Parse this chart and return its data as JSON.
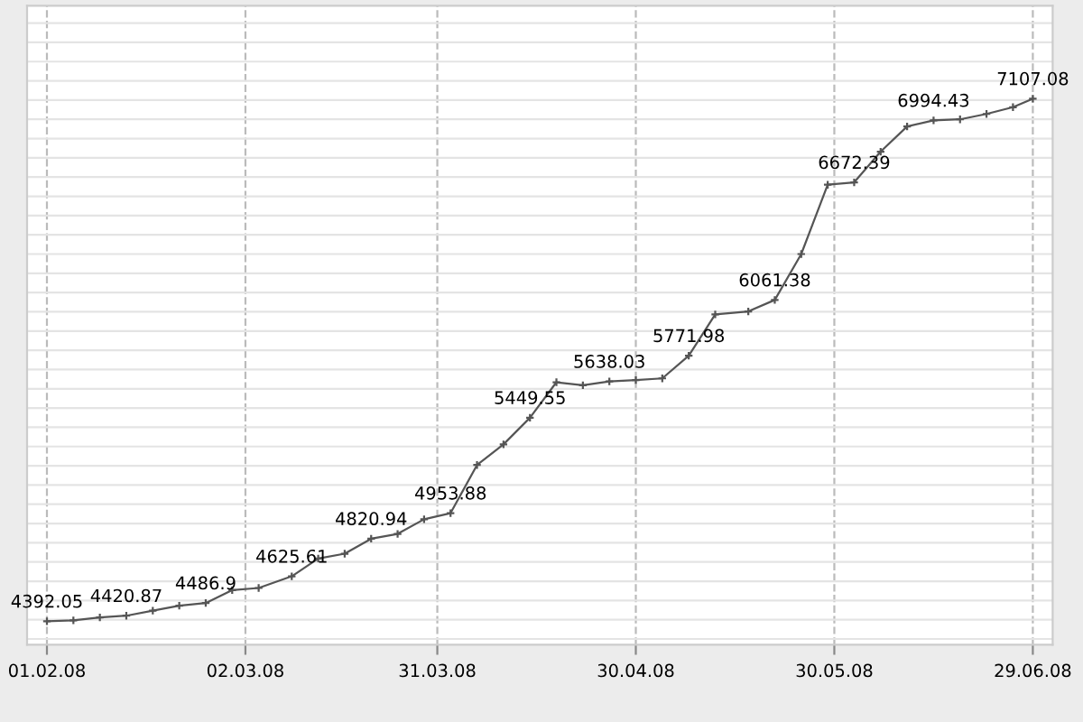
{
  "chart_data": {
    "type": "line",
    "x": [
      "2008-02-01",
      "2008-02-05",
      "2008-02-09",
      "2008-02-13",
      "2008-02-17",
      "2008-02-21",
      "2008-02-25",
      "2008-02-29",
      "2008-03-04",
      "2008-03-09",
      "2008-03-13",
      "2008-03-17",
      "2008-03-21",
      "2008-03-25",
      "2008-03-29",
      "2008-04-02",
      "2008-04-06",
      "2008-04-10",
      "2008-04-14",
      "2008-04-18",
      "2008-04-22",
      "2008-04-26",
      "2008-04-30",
      "2008-05-04",
      "2008-05-08",
      "2008-05-12",
      "2008-05-17",
      "2008-05-21",
      "2008-05-25",
      "2008-05-29",
      "2008-06-02",
      "2008-06-06",
      "2008-06-10",
      "2008-06-14",
      "2008-06-18",
      "2008-06-22",
      "2008-06-26",
      "2008-06-29"
    ],
    "series": [
      {
        "color": "#555555",
        "values": [
          4392.05,
          4397,
          4412,
          4420.87,
          4447,
          4473,
          4486.9,
          4554,
          4565,
          4625.61,
          4718,
          4743,
          4820.94,
          4846,
          4922,
          4953.88,
          5204,
          5311,
          5449.55,
          5634,
          5618,
          5638.03,
          5645,
          5654,
          5771.98,
          5986,
          6002,
          6061.38,
          6300,
          6660,
          6672.39,
          6832,
          6963,
          6994.43,
          7000,
          7028,
          7063,
          7107.08
        ],
        "value_labels": [
          "4392.05",
          null,
          null,
          "4420.87",
          null,
          null,
          "4486.9",
          null,
          null,
          "4625.61",
          null,
          null,
          "4820.94",
          null,
          null,
          "4953.88",
          null,
          null,
          "5449.55",
          null,
          null,
          "5638.03",
          null,
          null,
          "5771.98",
          null,
          null,
          "6061.38",
          null,
          null,
          "6672.39",
          null,
          null,
          "6994.43",
          null,
          null,
          null,
          "7107.08"
        ]
      }
    ],
    "xlim": [
      "2008-01-29",
      "2008-07-02"
    ],
    "xticks": [
      {
        "value": "2008-02-01",
        "label": "01.02.08"
      },
      {
        "value": "2008-03-02",
        "label": "02.03.08"
      },
      {
        "value": "2008-03-31",
        "label": "31.03.08"
      },
      {
        "value": "2008-04-30",
        "label": "30.04.08"
      },
      {
        "value": "2008-05-30",
        "label": "30.05.08"
      },
      {
        "value": "2008-06-29",
        "label": "29.06.08"
      }
    ],
    "ylim": [
      4270,
      7590
    ],
    "yticks": [
      {
        "value": 4300,
        "label": null
      },
      {
        "value": 4400,
        "label": null
      },
      {
        "value": 4500,
        "label": null
      },
      {
        "value": 4600,
        "label": null
      },
      {
        "value": 4700,
        "label": null
      },
      {
        "value": 4800,
        "label": null
      },
      {
        "value": 4900,
        "label": null
      },
      {
        "value": 5000,
        "label": null
      },
      {
        "value": 5100,
        "label": null
      },
      {
        "value": 5200,
        "label": null
      },
      {
        "value": 5300,
        "label": null
      },
      {
        "value": 5400,
        "label": null
      },
      {
        "value": 5500,
        "label": null
      },
      {
        "value": 5600,
        "label": null
      },
      {
        "value": 5700,
        "label": null
      },
      {
        "value": 5800,
        "label": null
      },
      {
        "value": 5900,
        "label": null
      },
      {
        "value": 6000,
        "label": null
      },
      {
        "value": 6100,
        "label": null
      },
      {
        "value": 6200,
        "label": null
      },
      {
        "value": 6300,
        "label": null
      },
      {
        "value": 6400,
        "label": null
      },
      {
        "value": 6500,
        "label": null
      },
      {
        "value": 6600,
        "label": null
      },
      {
        "value": 6700,
        "label": null
      },
      {
        "value": 6800,
        "label": null
      },
      {
        "value": 6900,
        "label": null
      },
      {
        "value": 7000,
        "label": null
      },
      {
        "value": 7100,
        "label": null
      },
      {
        "value": 7200,
        "label": null
      },
      {
        "value": 7300,
        "label": null
      },
      {
        "value": 7400,
        "label": null
      },
      {
        "value": 7500,
        "label": null
      }
    ],
    "tick_labels": "x",
    "grid": true,
    "marker": "cross",
    "line_style": "solid"
  }
}
